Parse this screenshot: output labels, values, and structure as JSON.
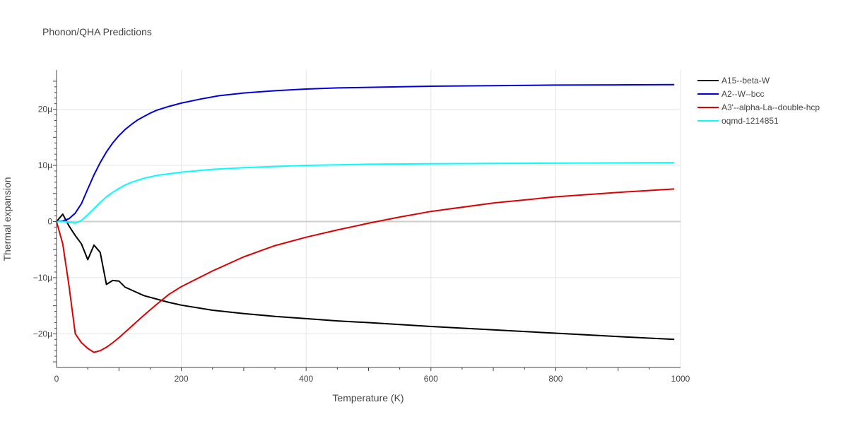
{
  "chart_data": {
    "type": "line",
    "title": "Phonon/QHA Predictions",
    "xlabel": "Temperature (K)",
    "ylabel": "Thermal expansion",
    "xlim": [
      0,
      1000
    ],
    "ylim": [
      -2.6e-05,
      2.7e-05
    ],
    "x_ticks": [
      0,
      200,
      400,
      600,
      800,
      1000
    ],
    "x_tick_labels": [
      "0",
      "200",
      "400",
      "600",
      "800",
      "1000"
    ],
    "y_ticks": [
      -2e-05,
      -1e-05,
      0,
      1e-05,
      2e-05
    ],
    "y_tick_labels": [
      "−20µ",
      "−10µ",
      "0",
      "10µ",
      "20µ"
    ],
    "grid": true,
    "legend_position": "top-right",
    "series": [
      {
        "name": "A15--beta-W",
        "color": "#000000",
        "x": [
          0,
          10,
          20,
          30,
          40,
          50,
          60,
          70,
          80,
          90,
          100,
          110,
          120,
          140,
          160,
          180,
          200,
          250,
          300,
          350,
          400,
          450,
          500,
          600,
          700,
          800,
          900,
          990
        ],
        "y": [
          0,
          1.3e-06,
          -8e-07,
          -2.5e-06,
          -4e-06,
          -6.8e-06,
          -4.2e-06,
          -5.5e-06,
          -1.12e-05,
          -1.05e-05,
          -1.06e-05,
          -1.17e-05,
          -1.22e-05,
          -1.32e-05,
          -1.38e-05,
          -1.44e-05,
          -1.49e-05,
          -1.58e-05,
          -1.64e-05,
          -1.69e-05,
          -1.73e-05,
          -1.77e-05,
          -1.8e-05,
          -1.87e-05,
          -1.93e-05,
          -1.99e-05,
          -2.05e-05,
          -2.1e-05
        ]
      },
      {
        "name": "A2--W--bcc",
        "color": "#0000dd",
        "x": [
          0,
          10,
          20,
          30,
          40,
          50,
          60,
          70,
          80,
          90,
          100,
          110,
          120,
          130,
          140,
          150,
          160,
          180,
          200,
          230,
          260,
          300,
          350,
          400,
          450,
          500,
          600,
          700,
          800,
          900,
          990
        ],
        "y": [
          0,
          1e-07,
          5e-07,
          1.5e-06,
          3.2e-06,
          5.8e-06,
          8.3e-06,
          1.05e-05,
          1.24e-05,
          1.4e-05,
          1.53e-05,
          1.64e-05,
          1.73e-05,
          1.81e-05,
          1.87e-05,
          1.93e-05,
          1.98e-05,
          2.05e-05,
          2.11e-05,
          2.18e-05,
          2.24e-05,
          2.29e-05,
          2.33e-05,
          2.36e-05,
          2.38e-05,
          2.39e-05,
          2.41e-05,
          2.42e-05,
          2.43e-05,
          2.435e-05,
          2.44e-05
        ]
      },
      {
        "name": "A3'--alpha-La--double-hcp",
        "color": "#dd0000",
        "x": [
          0,
          10,
          20,
          30,
          40,
          50,
          60,
          70,
          80,
          90,
          100,
          120,
          140,
          160,
          180,
          200,
          250,
          300,
          350,
          400,
          450,
          500,
          550,
          600,
          700,
          800,
          900,
          990
        ],
        "y": [
          0,
          -4e-06,
          -1.15e-05,
          -2e-05,
          -2.16e-05,
          -2.26e-05,
          -2.33e-05,
          -2.3e-05,
          -2.24e-05,
          -2.16e-05,
          -2.07e-05,
          -1.87e-05,
          -1.67e-05,
          -1.48e-05,
          -1.3e-05,
          -1.16e-05,
          -8.8e-06,
          -6.3e-06,
          -4.3e-06,
          -2.8e-06,
          -1.5e-06,
          -3e-07,
          8e-07,
          1.8e-06,
          3.3e-06,
          4.4e-06,
          5.2e-06,
          5.8e-06
        ]
      },
      {
        "name": "oqmd-1214851",
        "color": "#00ffff",
        "x": [
          0,
          10,
          20,
          30,
          40,
          50,
          60,
          70,
          80,
          90,
          100,
          110,
          120,
          140,
          160,
          180,
          200,
          250,
          300,
          350,
          400,
          450,
          500,
          600,
          700,
          800,
          900,
          990
        ],
        "y": [
          0,
          0,
          -1e-07,
          -3e-07,
          2e-07,
          1.2e-06,
          2.3e-06,
          3.4e-06,
          4.4e-06,
          5.2e-06,
          5.9e-06,
          6.5e-06,
          7e-06,
          7.7e-06,
          8.2e-06,
          8.5e-06,
          8.8e-06,
          9.3e-06,
          9.6e-06,
          9.8e-06,
          1e-05,
          1.01e-05,
          1.02e-05,
          1.03e-05,
          1.035e-05,
          1.04e-05,
          1.045e-05,
          1.05e-05
        ]
      }
    ]
  }
}
